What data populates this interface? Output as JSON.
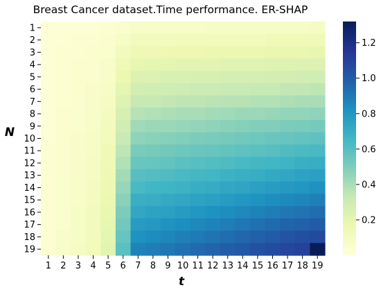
{
  "chart_data": {
    "type": "heatmap",
    "title": "Breast Cancer  dataset.Time performance. ER-SHAP",
    "xlabel": "t",
    "ylabel": "N",
    "x_ticks": [
      "1",
      "2",
      "3",
      "4",
      "5",
      "6",
      "7",
      "8",
      "9",
      "10",
      "11",
      "12",
      "13",
      "14",
      "15",
      "16",
      "17",
      "18",
      "19"
    ],
    "y_ticks": [
      "1",
      "2",
      "3",
      "4",
      "5",
      "6",
      "7",
      "8",
      "9",
      "10",
      "11",
      "12",
      "13",
      "14",
      "15",
      "16",
      "17",
      "18",
      "19"
    ],
    "colormap": "YlGnBu",
    "colormap_stops": [
      "#ffffd9",
      "#edf8b1",
      "#c7e9b4",
      "#7fcdbb",
      "#41b6c4",
      "#1d91c0",
      "#225ea8",
      "#253494",
      "#081d58"
    ],
    "color_range": [
      0.0,
      1.32
    ],
    "colorbar_ticks": [
      "0.2",
      "0.4",
      "0.6",
      "0.8",
      "1.0",
      "1.2"
    ],
    "colorbar_tick_values": [
      0.2,
      0.4,
      0.6,
      0.8,
      1.0,
      1.2
    ],
    "values": [
      [
        0.02,
        0.02,
        0.02,
        0.02,
        0.03,
        0.05,
        0.07,
        0.07,
        0.07,
        0.07,
        0.07,
        0.08,
        0.08,
        0.08,
        0.08,
        0.08,
        0.08,
        0.08,
        0.09
      ],
      [
        0.02,
        0.02,
        0.03,
        0.03,
        0.04,
        0.08,
        0.11,
        0.11,
        0.11,
        0.12,
        0.12,
        0.12,
        0.12,
        0.12,
        0.12,
        0.13,
        0.13,
        0.13,
        0.13
      ],
      [
        0.02,
        0.03,
        0.03,
        0.04,
        0.05,
        0.11,
        0.15,
        0.15,
        0.16,
        0.16,
        0.16,
        0.17,
        0.17,
        0.17,
        0.17,
        0.18,
        0.18,
        0.18,
        0.19
      ],
      [
        0.02,
        0.03,
        0.04,
        0.05,
        0.06,
        0.14,
        0.19,
        0.2,
        0.2,
        0.21,
        0.21,
        0.21,
        0.22,
        0.22,
        0.22,
        0.23,
        0.23,
        0.24,
        0.24
      ],
      [
        0.02,
        0.03,
        0.04,
        0.05,
        0.07,
        0.17,
        0.24,
        0.24,
        0.25,
        0.25,
        0.26,
        0.26,
        0.27,
        0.27,
        0.27,
        0.28,
        0.28,
        0.29,
        0.29
      ],
      [
        0.02,
        0.03,
        0.04,
        0.06,
        0.08,
        0.2,
        0.28,
        0.29,
        0.29,
        0.3,
        0.31,
        0.31,
        0.32,
        0.32,
        0.33,
        0.33,
        0.34,
        0.34,
        0.35
      ],
      [
        0.02,
        0.03,
        0.05,
        0.06,
        0.09,
        0.23,
        0.33,
        0.33,
        0.34,
        0.35,
        0.35,
        0.36,
        0.37,
        0.37,
        0.38,
        0.38,
        0.39,
        0.4,
        0.4
      ],
      [
        0.02,
        0.04,
        0.05,
        0.07,
        0.1,
        0.26,
        0.37,
        0.38,
        0.39,
        0.4,
        0.4,
        0.41,
        0.42,
        0.43,
        0.43,
        0.44,
        0.45,
        0.45,
        0.46
      ],
      [
        0.02,
        0.04,
        0.05,
        0.07,
        0.11,
        0.29,
        0.42,
        0.43,
        0.43,
        0.44,
        0.45,
        0.46,
        0.47,
        0.48,
        0.49,
        0.49,
        0.5,
        0.51,
        0.52
      ],
      [
        0.02,
        0.04,
        0.06,
        0.08,
        0.12,
        0.32,
        0.46,
        0.47,
        0.48,
        0.49,
        0.5,
        0.51,
        0.52,
        0.53,
        0.54,
        0.55,
        0.56,
        0.57,
        0.58
      ],
      [
        0.03,
        0.04,
        0.06,
        0.08,
        0.13,
        0.35,
        0.51,
        0.52,
        0.53,
        0.54,
        0.55,
        0.56,
        0.57,
        0.58,
        0.59,
        0.6,
        0.62,
        0.63,
        0.64
      ],
      [
        0.03,
        0.04,
        0.06,
        0.09,
        0.14,
        0.38,
        0.55,
        0.56,
        0.57,
        0.59,
        0.6,
        0.61,
        0.62,
        0.64,
        0.65,
        0.66,
        0.67,
        0.69,
        0.7
      ],
      [
        0.03,
        0.05,
        0.07,
        0.09,
        0.15,
        0.41,
        0.6,
        0.61,
        0.62,
        0.64,
        0.65,
        0.66,
        0.68,
        0.69,
        0.7,
        0.72,
        0.73,
        0.75,
        0.76
      ],
      [
        0.03,
        0.05,
        0.07,
        0.1,
        0.16,
        0.44,
        0.64,
        0.66,
        0.67,
        0.68,
        0.7,
        0.71,
        0.73,
        0.74,
        0.76,
        0.77,
        0.79,
        0.8,
        0.82
      ],
      [
        0.03,
        0.05,
        0.07,
        0.1,
        0.17,
        0.47,
        0.69,
        0.7,
        0.72,
        0.73,
        0.75,
        0.76,
        0.78,
        0.8,
        0.81,
        0.83,
        0.85,
        0.86,
        0.88
      ],
      [
        0.03,
        0.05,
        0.08,
        0.11,
        0.18,
        0.5,
        0.73,
        0.75,
        0.76,
        0.78,
        0.8,
        0.82,
        0.83,
        0.85,
        0.87,
        0.89,
        0.91,
        0.92,
        0.94
      ],
      [
        0.03,
        0.05,
        0.08,
        0.11,
        0.19,
        0.53,
        0.78,
        0.79,
        0.81,
        0.83,
        0.85,
        0.87,
        0.89,
        0.91,
        0.93,
        0.95,
        0.97,
        0.98,
        1.0
      ],
      [
        0.03,
        0.06,
        0.08,
        0.12,
        0.2,
        0.56,
        0.82,
        0.84,
        0.86,
        0.88,
        0.9,
        0.92,
        0.94,
        0.96,
        0.98,
        1.0,
        1.03,
        1.05,
        1.07
      ],
      [
        0.03,
        0.06,
        0.09,
        0.12,
        0.21,
        0.59,
        0.87,
        0.89,
        0.91,
        0.93,
        0.95,
        0.97,
        0.99,
        1.01,
        1.04,
        1.06,
        1.08,
        1.1,
        1.32
      ]
    ]
  }
}
